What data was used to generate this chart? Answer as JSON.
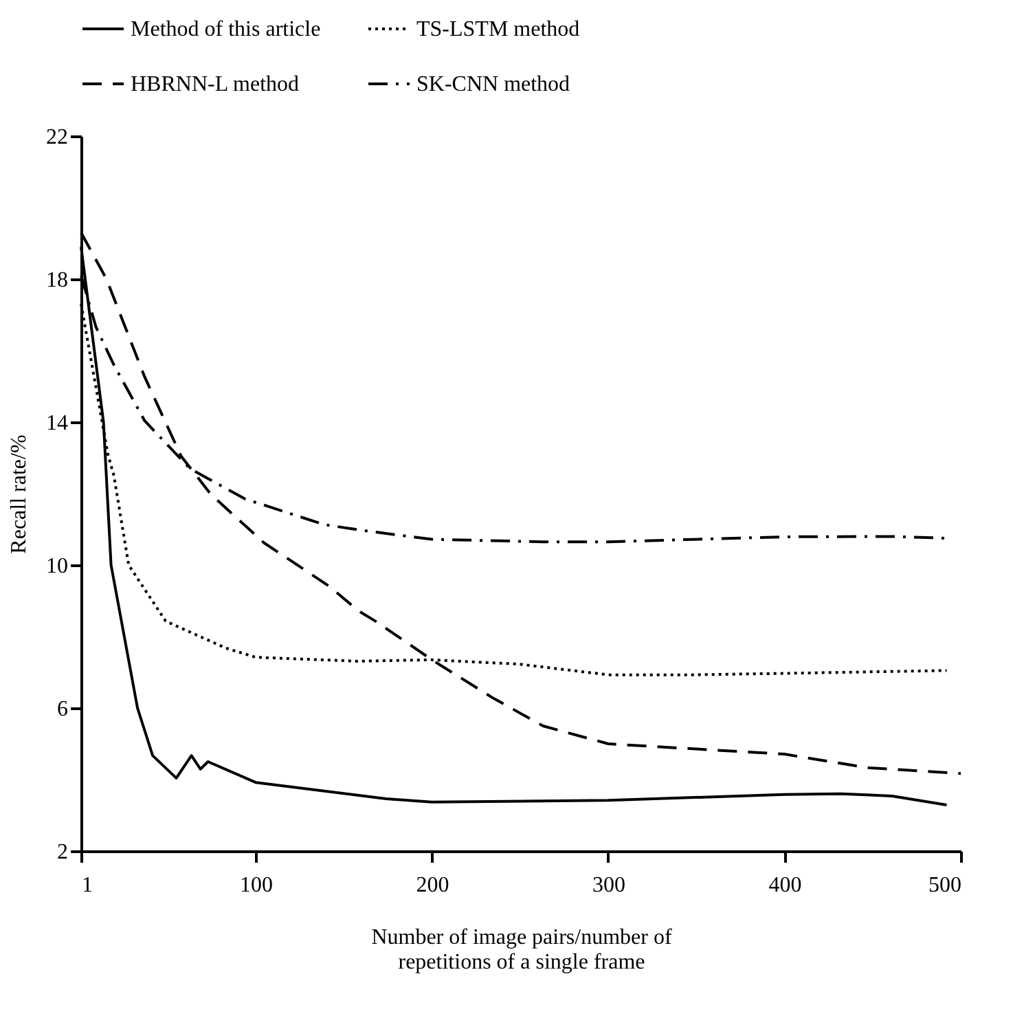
{
  "chart_data": {
    "type": "line",
    "xlabel": "Number of image pairs/number of repetitions of a single frame",
    "ylabel": "Recall rate/%",
    "xlim": [
      1,
      500
    ],
    "xticks": [
      1,
      100,
      200,
      300,
      400,
      500
    ],
    "ylim": [
      2,
      22
    ],
    "yticks": [
      2,
      6,
      10,
      14,
      18,
      22
    ],
    "grid": false,
    "legend": "top",
    "marker": "none",
    "series": [
      {
        "name": "Method of this article",
        "color": "#000000",
        "line_style": "solid",
        "x": [
          1,
          13.7,
          18,
          33,
          41.6,
          55,
          63.6,
          68.7,
          73,
          100,
          174,
          200,
          300,
          400,
          432,
          461,
          492
        ],
        "values": [
          18.9,
          14,
          10,
          6,
          4.67,
          4.04,
          4.67,
          4.29,
          4.5,
          3.92,
          3.46,
          3.37,
          3.42,
          3.58,
          3.6,
          3.54,
          3.29
        ]
      },
      {
        "name": "TS-LSTM method",
        "color": "#000000",
        "line_style": "dotted",
        "x": [
          1,
          16.2,
          19.6,
          28,
          49,
          83,
          100,
          158,
          200,
          249,
          300,
          348,
          400,
          492
        ],
        "values": [
          17.3,
          13.1,
          12.5,
          10,
          8.43,
          7.68,
          7.42,
          7.31,
          7.35,
          7.23,
          6.93,
          6.93,
          6.97,
          7.05
        ]
      },
      {
        "name": "HBRNN-L method",
        "color": "#000000",
        "line_style": "dashed",
        "x": [
          1,
          15.4,
          37,
          57.7,
          74.6,
          104.8,
          142,
          158,
          168,
          200,
          234,
          263,
          300,
          348,
          400,
          447,
          500
        ],
        "values": [
          19.3,
          18,
          15.27,
          13.05,
          11.98,
          10.62,
          9.4,
          8.73,
          8.43,
          7.35,
          6.3,
          5.5,
          5.0,
          4.86,
          4.71,
          4.33,
          4.17
        ]
      },
      {
        "name": "SK-CNN method",
        "color": "#000000",
        "line_style": "dashdot",
        "x": [
          1,
          9.5,
          19.6,
          37,
          62.7,
          94,
          139,
          162,
          200,
          263,
          300,
          371,
          400,
          461,
          492
        ],
        "values": [
          18.1,
          16.65,
          15.6,
          14.04,
          12.7,
          11.85,
          11.13,
          10.96,
          10.72,
          10.65,
          10.65,
          10.75,
          10.79,
          10.8,
          10.75
        ]
      }
    ]
  }
}
